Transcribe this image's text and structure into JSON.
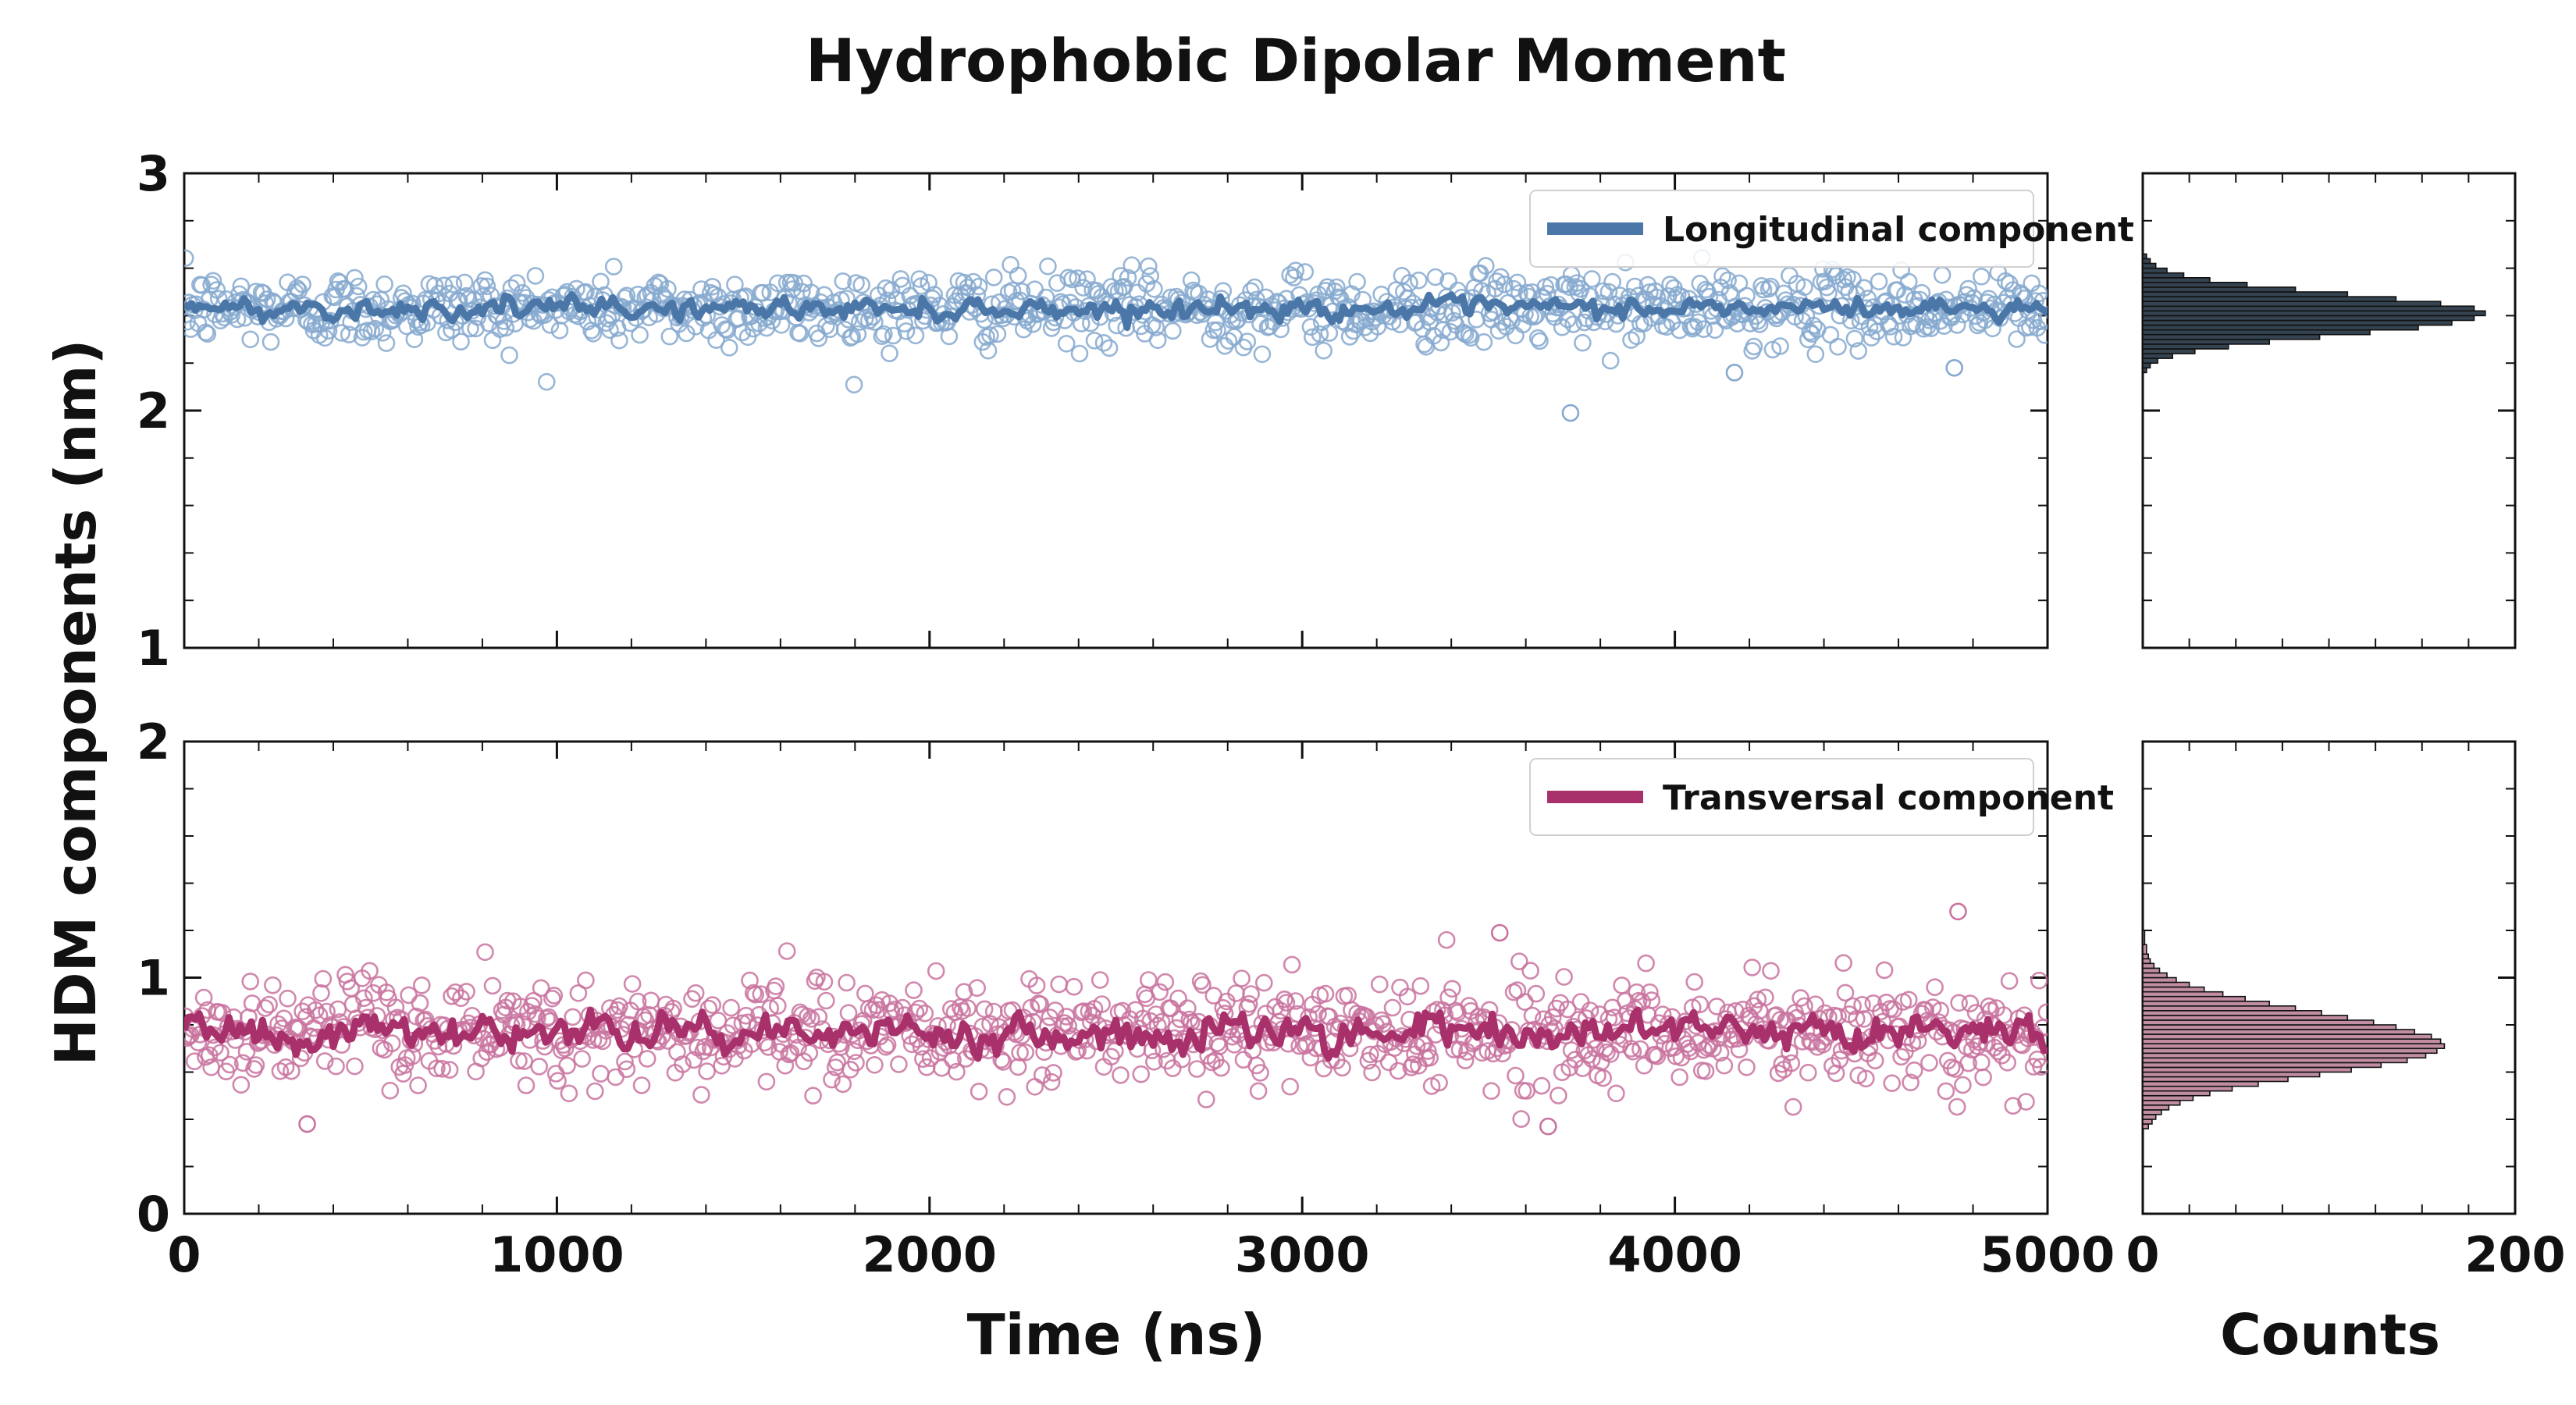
{
  "chart_data": {
    "type": "scatter",
    "title": "Hydrophobic Dipolar Moment",
    "ylabel": "HDM components (nm)",
    "xlabel": "Time (ns)",
    "hist_xlabel": "Counts",
    "colors": {
      "longitudinal": "#4a77a8",
      "longitudinal_points": "#86a9cf",
      "transversal": "#a8306b",
      "transversal_points": "#c9739f",
      "hist_top": "#34434f",
      "hist_bottom": "#c08da2"
    },
    "panels": [
      {
        "name": "top-time-series",
        "xlim": [
          0,
          5000
        ],
        "ylim": [
          1,
          3
        ],
        "x_ticks": [
          0,
          1000,
          2000,
          3000,
          4000,
          5000
        ],
        "y_ticks": [
          1,
          2,
          3
        ],
        "x_ticks_labeled": false,
        "legend": "top-right",
        "series": [
          {
            "name": "Longitudinal component",
            "mean": 2.43,
            "spread": 0.09,
            "smoothed_spread": 0.025,
            "outliers": [
              [
                3720,
                1.99
              ],
              [
                4160,
                2.16
              ],
              [
                4750,
                2.18
              ]
            ]
          }
        ]
      },
      {
        "name": "bottom-time-series",
        "xlim": [
          0,
          5000
        ],
        "ylim": [
          0,
          2
        ],
        "x_ticks": [
          0,
          1000,
          2000,
          3000,
          4000,
          5000
        ],
        "y_ticks": [
          0,
          1,
          2
        ],
        "x_ticks_labeled": true,
        "legend": "top-right",
        "series": [
          {
            "name": "Transversal component",
            "mean": 0.77,
            "spread": 0.13,
            "smoothed_spread": 0.045,
            "outliers": [
              [
                4760,
                1.28
              ],
              [
                3530,
                1.19
              ],
              [
                330,
                0.38
              ],
              [
                3660,
                0.37
              ]
            ]
          }
        ]
      }
    ],
    "histograms": [
      {
        "name": "top-histogram",
        "xlim": [
          0,
          200
        ],
        "ylim": [
          1,
          3
        ],
        "x_ticks": [
          0,
          200
        ],
        "orientation": "horizontal",
        "bins": [
          [
            2.16,
            2.18,
            2
          ],
          [
            2.18,
            2.2,
            4
          ],
          [
            2.2,
            2.22,
            8
          ],
          [
            2.22,
            2.24,
            16
          ],
          [
            2.24,
            2.26,
            28
          ],
          [
            2.26,
            2.28,
            46
          ],
          [
            2.28,
            2.3,
            68
          ],
          [
            2.3,
            2.32,
            95
          ],
          [
            2.32,
            2.34,
            122
          ],
          [
            2.34,
            2.36,
            148
          ],
          [
            2.36,
            2.38,
            166
          ],
          [
            2.38,
            2.4,
            178
          ],
          [
            2.4,
            2.42,
            184
          ],
          [
            2.42,
            2.44,
            178
          ],
          [
            2.44,
            2.46,
            160
          ],
          [
            2.46,
            2.48,
            136
          ],
          [
            2.48,
            2.5,
            110
          ],
          [
            2.5,
            2.52,
            82
          ],
          [
            2.52,
            2.54,
            56
          ],
          [
            2.54,
            2.56,
            36
          ],
          [
            2.56,
            2.58,
            22
          ],
          [
            2.58,
            2.6,
            13
          ],
          [
            2.6,
            2.62,
            7
          ],
          [
            2.62,
            2.64,
            4
          ],
          [
            2.64,
            2.66,
            2
          ]
        ]
      },
      {
        "name": "bottom-histogram",
        "xlim": [
          0,
          200
        ],
        "ylim": [
          0,
          2
        ],
        "x_ticks": [
          0,
          200
        ],
        "orientation": "horizontal",
        "bins": [
          [
            0.36,
            0.38,
            3
          ],
          [
            0.38,
            0.4,
            5
          ],
          [
            0.4,
            0.42,
            7
          ],
          [
            0.42,
            0.44,
            10
          ],
          [
            0.44,
            0.46,
            14
          ],
          [
            0.46,
            0.48,
            20
          ],
          [
            0.48,
            0.5,
            27
          ],
          [
            0.5,
            0.52,
            36
          ],
          [
            0.52,
            0.54,
            48
          ],
          [
            0.54,
            0.56,
            62
          ],
          [
            0.56,
            0.58,
            78
          ],
          [
            0.58,
            0.6,
            95
          ],
          [
            0.6,
            0.62,
            112
          ],
          [
            0.62,
            0.64,
            128
          ],
          [
            0.64,
            0.66,
            142
          ],
          [
            0.66,
            0.68,
            152
          ],
          [
            0.68,
            0.7,
            158
          ],
          [
            0.7,
            0.72,
            162
          ],
          [
            0.72,
            0.74,
            160
          ],
          [
            0.74,
            0.76,
            155
          ],
          [
            0.76,
            0.78,
            146
          ],
          [
            0.78,
            0.8,
            136
          ],
          [
            0.8,
            0.82,
            124
          ],
          [
            0.82,
            0.84,
            110
          ],
          [
            0.84,
            0.86,
            96
          ],
          [
            0.86,
            0.88,
            82
          ],
          [
            0.88,
            0.9,
            68
          ],
          [
            0.9,
            0.92,
            55
          ],
          [
            0.92,
            0.94,
            43
          ],
          [
            0.94,
            0.96,
            33
          ],
          [
            0.96,
            0.98,
            25
          ],
          [
            0.98,
            1.0,
            18
          ],
          [
            1.0,
            1.02,
            13
          ],
          [
            1.02,
            1.04,
            9
          ],
          [
            1.04,
            1.06,
            6
          ],
          [
            1.06,
            1.08,
            4
          ],
          [
            1.08,
            1.1,
            3
          ],
          [
            1.1,
            1.14,
            2
          ],
          [
            1.14,
            1.2,
            1
          ]
        ]
      }
    ]
  }
}
